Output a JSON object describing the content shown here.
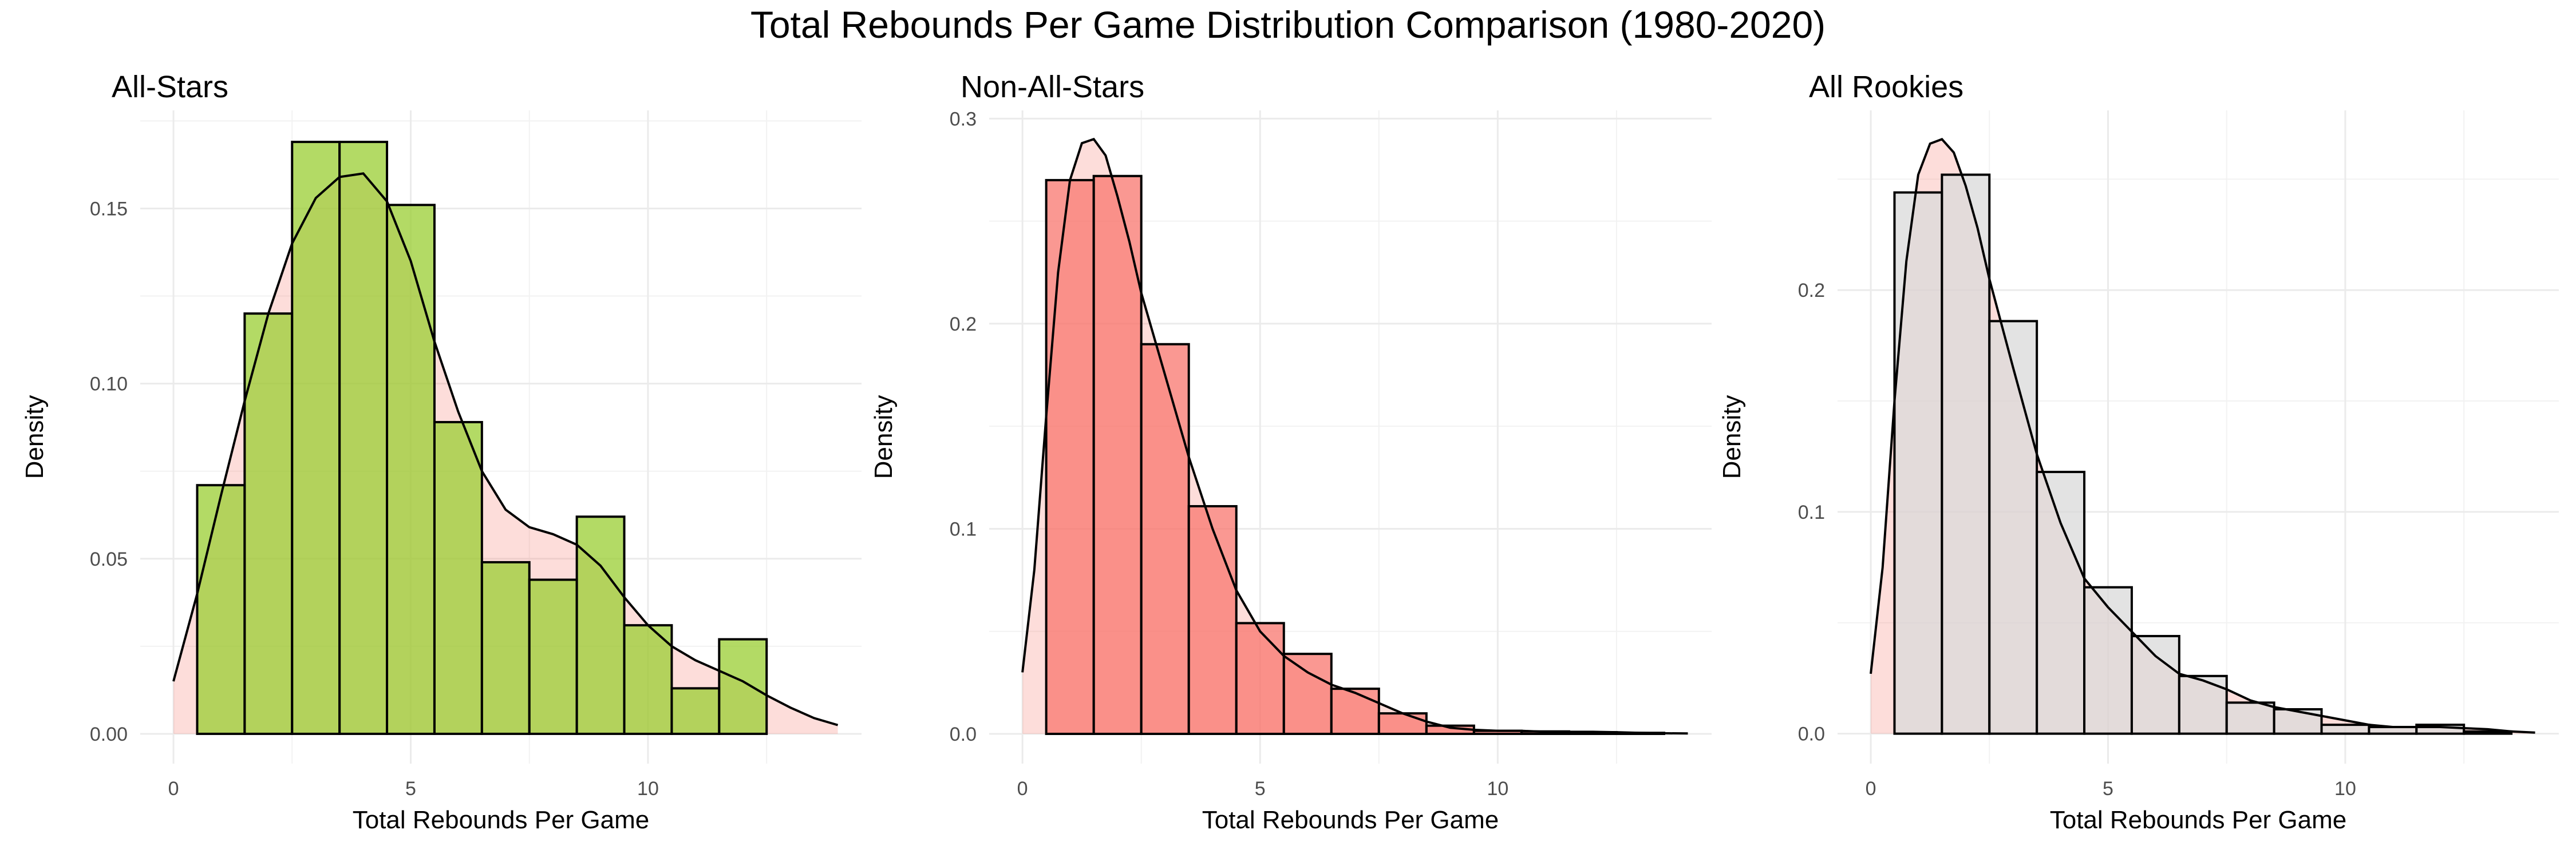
{
  "title": "Total Rebounds Per Game Distribution Comparison (1980-2020)",
  "chart_data": [
    {
      "type": "histogram",
      "title": "All-Stars",
      "xlabel": "Total Rebounds Per Game",
      "ylabel": "Density",
      "xlim": [
        -0.7,
        14.5
      ],
      "ylim": [
        -0.0085,
        0.178
      ],
      "xticks": [
        0,
        5,
        10
      ],
      "yticks": [
        0.0,
        0.05,
        0.1,
        0.15
      ],
      "ytick_labels": [
        "0.00",
        "0.05",
        "0.10",
        "0.15"
      ],
      "grid": true,
      "bins": {
        "edges": [
          0.5,
          1.5,
          2.5,
          3.5,
          4.5,
          5.5,
          6.5,
          7.5,
          8.5,
          9.5,
          10.5,
          11.5,
          12.5
        ],
        "values": [
          0.071,
          0.12,
          0.169,
          0.169,
          0.151,
          0.089,
          0.049,
          0.044,
          0.062,
          0.031,
          0.013,
          0.027
        ]
      },
      "density": {
        "x": [
          0,
          0.5,
          1,
          1.5,
          2,
          2.5,
          3,
          3.5,
          4,
          4.5,
          5,
          5.5,
          6,
          6.5,
          7,
          7.5,
          8,
          8.5,
          9,
          9.5,
          10,
          10.5,
          11,
          11.5,
          12,
          12.5,
          13,
          13.5,
          14
        ],
        "y": [
          0.015,
          0.04,
          0.068,
          0.095,
          0.12,
          0.14,
          0.153,
          0.159,
          0.16,
          0.152,
          0.135,
          0.112,
          0.092,
          0.075,
          0.064,
          0.059,
          0.057,
          0.054,
          0.048,
          0.039,
          0.031,
          0.025,
          0.021,
          0.018,
          0.015,
          0.011,
          0.0075,
          0.0045,
          0.0025
        ]
      },
      "colors": {
        "bars": "#9ACD32",
        "bar_opacity": 0.75,
        "density_fill": "#F8766D",
        "density_fill_opacity": 0.25
      }
    },
    {
      "type": "histogram",
      "title": "Non-All-Stars",
      "xlabel": "Total Rebounds Per Game",
      "ylabel": "Density",
      "xlim": [
        -0.7,
        14.5
      ],
      "ylim": [
        -0.0145,
        0.304
      ],
      "xticks": [
        0,
        5,
        10
      ],
      "yticks": [
        0.0,
        0.1,
        0.2,
        0.3
      ],
      "ytick_labels": [
        "0.0",
        "0.1",
        "0.2",
        "0.3"
      ],
      "grid": true,
      "bins": {
        "edges": [
          0.5,
          1.5,
          2.5,
          3.5,
          4.5,
          5.5,
          6.5,
          7.5,
          8.5,
          9.5,
          10.5,
          11.5,
          12.5,
          13.5
        ],
        "values": [
          0.27,
          0.272,
          0.19,
          0.111,
          0.054,
          0.039,
          0.022,
          0.01,
          0.004,
          0.0015,
          0.0012,
          0.0008,
          0.0005
        ]
      },
      "density": {
        "x": [
          0,
          0.25,
          0.5,
          0.75,
          1,
          1.25,
          1.5,
          1.75,
          2,
          2.25,
          2.5,
          3,
          3.5,
          4,
          4.5,
          5,
          5.5,
          6,
          6.5,
          7,
          7.5,
          8,
          8.5,
          9,
          9.5,
          10,
          10.5,
          11,
          11.5,
          12,
          12.5,
          13,
          13.5,
          14
        ],
        "y": [
          0.03,
          0.08,
          0.155,
          0.225,
          0.27,
          0.288,
          0.29,
          0.282,
          0.262,
          0.24,
          0.215,
          0.175,
          0.135,
          0.1,
          0.07,
          0.05,
          0.038,
          0.03,
          0.024,
          0.02,
          0.015,
          0.01,
          0.006,
          0.003,
          0.002,
          0.0015,
          0.0015,
          0.001,
          0.001,
          0.001,
          0.0008,
          0.0005,
          0.0003,
          0.0002
        ]
      },
      "colors": {
        "bars": "#F8766D",
        "bar_opacity": 0.75,
        "density_fill": "#F8766D",
        "density_fill_opacity": 0.25
      }
    },
    {
      "type": "histogram",
      "title": "All Rookies",
      "xlabel": "Total Rebounds Per Game",
      "ylabel": "Density",
      "xlim": [
        -0.7,
        14.5
      ],
      "ylim": [
        -0.0135,
        0.281
      ],
      "xticks": [
        0,
        5,
        10
      ],
      "yticks": [
        0.0,
        0.1,
        0.2
      ],
      "ytick_labels": [
        "0.0",
        "0.1",
        "0.2"
      ],
      "grid": true,
      "bins": {
        "edges": [
          0.5,
          1.5,
          2.5,
          3.5,
          4.5,
          5.5,
          6.5,
          7.5,
          8.5,
          9.5,
          10.5,
          11.5,
          12.5,
          13.5
        ],
        "values": [
          0.244,
          0.252,
          0.186,
          0.118,
          0.066,
          0.044,
          0.026,
          0.014,
          0.011,
          0.004,
          0.003,
          0.004,
          0.001
        ]
      },
      "density": {
        "x": [
          0,
          0.25,
          0.5,
          0.75,
          1,
          1.25,
          1.5,
          1.75,
          2,
          2.25,
          2.5,
          3,
          3.5,
          4,
          4.5,
          5,
          5.5,
          6,
          6.5,
          7,
          7.5,
          8,
          8.5,
          9,
          9.5,
          10,
          10.5,
          11,
          11.5,
          12,
          12.5,
          13,
          13.5,
          14
        ],
        "y": [
          0.027,
          0.075,
          0.15,
          0.213,
          0.252,
          0.266,
          0.268,
          0.262,
          0.247,
          0.228,
          0.205,
          0.165,
          0.126,
          0.095,
          0.07,
          0.057,
          0.046,
          0.035,
          0.027,
          0.024,
          0.02,
          0.015,
          0.012,
          0.01,
          0.008,
          0.006,
          0.004,
          0.003,
          0.003,
          0.003,
          0.0025,
          0.002,
          0.001,
          0.0005
        ]
      },
      "colors": {
        "bars": "#D9D9D9",
        "bar_opacity": 0.75,
        "density_fill": "#F8766D",
        "density_fill_opacity": 0.25
      }
    }
  ]
}
